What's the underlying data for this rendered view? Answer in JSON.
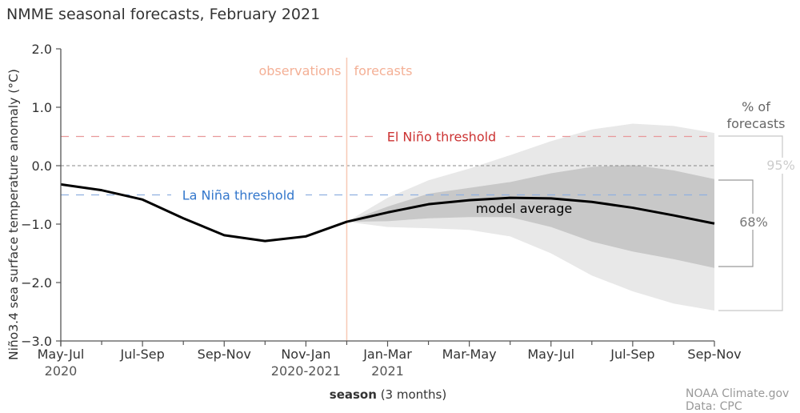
{
  "chart_data": {
    "type": "line",
    "title": "NMME seasonal forecasts, February 2021",
    "ylabel": "Niño3.4 sea surface temperature anomaly (°C)",
    "xlabel_bold": "season",
    "xlabel_rest": " (3 months)",
    "ylim": [
      -3.0,
      2.0
    ],
    "yticks": [
      2.0,
      1.0,
      0.0,
      -1.0,
      -2.0,
      -3.0
    ],
    "ytick_labels": [
      "2.0",
      "1.0",
      "0.0",
      "−1.0",
      "−2.0",
      "−3.0"
    ],
    "x_positions": [
      0,
      1,
      2,
      3,
      4,
      5,
      6,
      7,
      8,
      9,
      10,
      11,
      12,
      13,
      14,
      15,
      16
    ],
    "xlim": [
      0,
      16
    ],
    "xtick_labels": [
      {
        "pos": 0,
        "line1": "May-Jul",
        "line2": "2020"
      },
      {
        "pos": 2,
        "line1": "Jul-Sep",
        "line2": ""
      },
      {
        "pos": 4,
        "line1": "Sep-Nov",
        "line2": ""
      },
      {
        "pos": 6,
        "line1": "Nov-Jan",
        "line2": "2020-2021"
      },
      {
        "pos": 8,
        "line1": "Jan-Mar",
        "line2": "2021"
      },
      {
        "pos": 10,
        "line1": "Mar-May",
        "line2": ""
      },
      {
        "pos": 12,
        "line1": "May-Jul",
        "line2": ""
      },
      {
        "pos": 14,
        "line1": "Jul-Sep",
        "line2": ""
      },
      {
        "pos": 16,
        "line1": "Sep-Nov",
        "line2": ""
      }
    ],
    "observations": {
      "x": [
        0,
        1,
        2,
        3,
        4,
        5,
        6,
        7
      ],
      "y": [
        -0.32,
        -0.42,
        -0.58,
        -0.9,
        -1.19,
        -1.29,
        -1.21,
        -0.96
      ]
    },
    "series": [
      {
        "name": "model average",
        "x": [
          7,
          8,
          9,
          10,
          11,
          12,
          13,
          14,
          15,
          16
        ],
        "y": [
          -0.96,
          -0.8,
          -0.66,
          -0.59,
          -0.55,
          -0.56,
          -0.62,
          -0.72,
          -0.85,
          -0.99
        ]
      }
    ],
    "band_95": {
      "label": "95%",
      "x": [
        7,
        8,
        9,
        10,
        11,
        12,
        13,
        14,
        15,
        16
      ],
      "upper": [
        -0.96,
        -0.55,
        -0.25,
        -0.05,
        0.18,
        0.42,
        0.62,
        0.72,
        0.68,
        0.56
      ],
      "lower": [
        -0.96,
        -1.05,
        -1.07,
        -1.1,
        -1.21,
        -1.5,
        -1.88,
        -2.15,
        -2.36,
        -2.48
      ]
    },
    "band_68": {
      "label": "68%",
      "x": [
        7,
        8,
        9,
        10,
        11,
        12,
        13,
        14,
        15,
        16
      ],
      "upper": [
        -0.96,
        -0.7,
        -0.48,
        -0.38,
        -0.28,
        -0.13,
        -0.02,
        0.01,
        -0.08,
        -0.23
      ],
      "lower": [
        -0.96,
        -0.95,
        -0.9,
        -0.88,
        -0.88,
        -1.05,
        -1.3,
        -1.47,
        -1.6,
        -1.75
      ]
    },
    "thresholds": [
      {
        "name": "El Niño threshold",
        "value": 0.5,
        "color": "#e8989a",
        "label_color": "#cc3333"
      },
      {
        "name": "zero line",
        "value": 0.0,
        "color": "#888888"
      },
      {
        "name": "La Niña threshold",
        "value": -0.5,
        "color": "#8fb0e0",
        "label_color": "#3377cc"
      }
    ],
    "divider": {
      "pos": 7,
      "left_label": "observations",
      "right_label": "forecasts",
      "color": "#f7c9b4",
      "label_color": "#f4b096"
    },
    "annotation_model_average": "model average",
    "legend": {
      "title_line1": "% of",
      "title_line2": "forecasts",
      "label_95": "95%",
      "label_68": "68%",
      "placement": "right"
    },
    "credit_line1": "NOAA Climate.gov",
    "credit_line2": "Data: CPC",
    "colors": {
      "band_95": "#e8e8e8",
      "band_68": "#c8c8c8",
      "line": "#000000",
      "axis": "#555555",
      "text": "#333333",
      "muted": "#999999"
    }
  }
}
